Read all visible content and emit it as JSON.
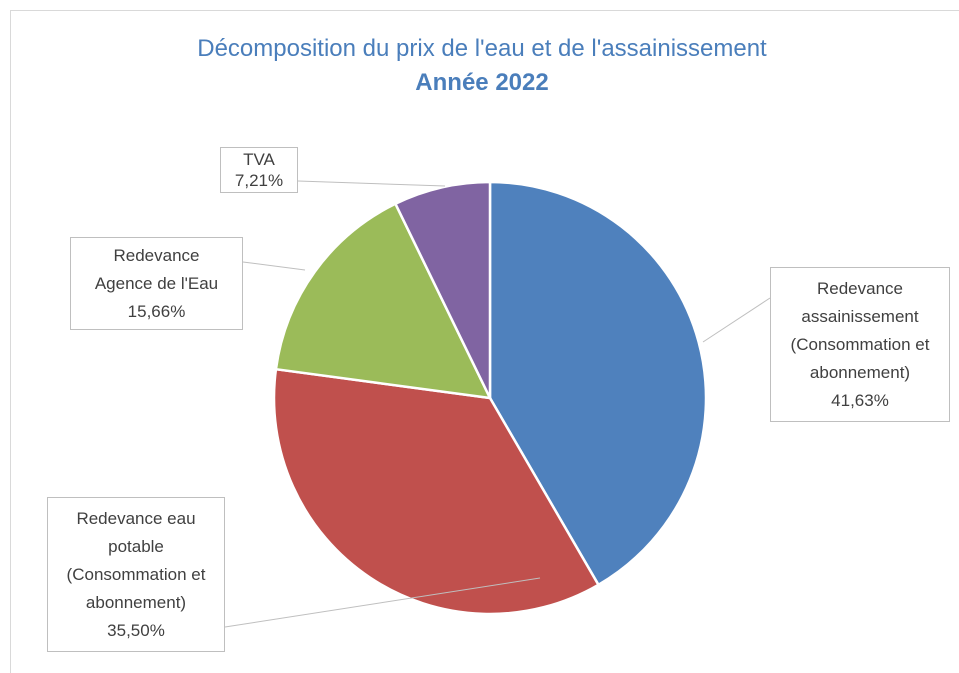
{
  "chart_data": {
    "type": "pie",
    "title": "Décomposition du prix de l'eau et de  l'assainissement",
    "subtitle": "Année 2022",
    "categories": [
      "Redevance assainissement (Consommation et abonnement)",
      "Redevance eau potable (Consommation et abonnement)",
      "Redevance Agence de l'Eau",
      "TVA"
    ],
    "values": [
      41.63,
      35.5,
      15.66,
      7.21
    ],
    "value_labels": [
      "41,63%",
      "35,50%",
      "15,66%",
      "7,21%"
    ],
    "colors": [
      "#4f81bd",
      "#c0504d",
      "#9bbb59",
      "#8064a2"
    ]
  }
}
